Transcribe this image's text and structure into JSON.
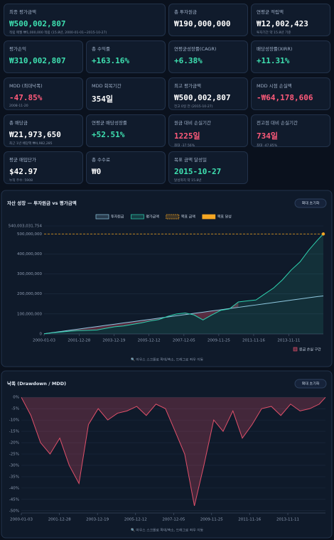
{
  "cards": [
    {
      "label": "최종 평가금액",
      "value": "₩500,002,807",
      "sub": "적립 매월 ₩1,000,000 적립 (15.8년, 2000-01-01~2015-10-27)",
      "color": "#3ee0b0"
    },
    {
      "label": "총 투자원금",
      "value": "₩190,000,000",
      "color": "#ffffff"
    },
    {
      "label": "연평균 적립액",
      "value": "₩12,002,423",
      "sub": "투자기간 약 15.8년 기준",
      "color": "#ffffff"
    },
    {
      "label": "평가손익",
      "value": "₩310,002,807",
      "color": "#3ee0b0"
    },
    {
      "label": "총 수익률",
      "value": "+163.16%",
      "color": "#3ee0b0"
    },
    {
      "label": "연평균성장률(CAGR)",
      "value": "+6.38%",
      "color": "#3ee0b0"
    },
    {
      "label": "배당성장률(XIRR)",
      "value": "+11.31%",
      "color": "#3ee0b0"
    },
    {
      "label": "MDD (최대낙폭)",
      "value": "-47.85%",
      "sub": "2008-11-20",
      "color": "#ff5a7a"
    },
    {
      "label": "MDD 회복기간",
      "value": "354일",
      "color": "#ffffff"
    },
    {
      "label": "최고 평가금액",
      "value": "₩500,002,807",
      "sub": "전고 0일 전 (2015-10-27)",
      "color": "#ffffff"
    },
    {
      "label": "MDD 시점 손실액",
      "value": "-₩64,178,606",
      "color": "#ff5a7a"
    },
    {
      "label": "총 배당금",
      "value": "₩21,973,650",
      "sub": "최근 1년 배당액 ₩4,982,285",
      "color": "#ffffff"
    },
    {
      "label": "연평균 배당성장률",
      "value": "+52.51%",
      "color": "#3ee0b0"
    },
    {
      "label": "원금 대비 손실기간",
      "value": "1225일",
      "sub": "최대 -37.56%",
      "color": "#ff5a7a"
    },
    {
      "label": "전고점 대비 손실기간",
      "value": "734일",
      "sub": "최대 -47.85%",
      "color": "#ff5a7a"
    },
    {
      "label": "평균 매입단가",
      "value": "$42.97",
      "sub": "누적 주수: 5908",
      "color": "#ffffff"
    },
    {
      "label": "총 수수료",
      "value": "₩0",
      "color": "#ffffff"
    },
    {
      "label": "목표 금액 달성일",
      "value": "2015-10-27",
      "sub": "달성까지 약 15.8년",
      "color": "#3ee0b0"
    }
  ],
  "chart_data": [
    {
      "type": "area-line",
      "title": "자산 성장 — 투자원금 vs 평가금액",
      "button": "확대 초기화",
      "x": [
        "2000-01-03",
        "2000-07-03",
        "2001-01-02",
        "2001-07-02",
        "2002-01-02",
        "2002-07-01",
        "2003-01-02",
        "2003-07-01",
        "2004-01-02",
        "2004-07-01",
        "2005-01-03",
        "2005-07-01",
        "2006-01-03",
        "2006-07-03",
        "2007-01-03",
        "2007-07-02",
        "2008-01-02",
        "2008-07-01",
        "2009-01-02",
        "2009-07-01",
        "2010-01-04",
        "2010-07-01",
        "2011-01-03",
        "2011-07-01",
        "2012-01-03",
        "2012-07-02",
        "2013-01-02",
        "2013-07-01",
        "2014-01-02",
        "2014-07-01",
        "2015-01-02",
        "2015-07-01",
        "2015-10-27"
      ],
      "series": [
        {
          "name": "투자원금",
          "color": "#8fc8e0",
          "values": [
            1000000,
            7000000,
            13000000,
            19000000,
            25000000,
            31000000,
            37000000,
            43000000,
            49000000,
            55000000,
            61000000,
            67000000,
            73000000,
            79000000,
            85000000,
            91000000,
            97000000,
            103000000,
            109000000,
            115000000,
            121000000,
            127000000,
            133000000,
            139000000,
            145000000,
            151000000,
            157000000,
            163000000,
            169000000,
            175000000,
            181000000,
            187000000,
            190000000
          ]
        },
        {
          "name": "평가금액",
          "color": "#2ed3b0",
          "values": [
            1000000,
            6000000,
            10000000,
            14000000,
            17000000,
            18000000,
            20000000,
            28000000,
            36000000,
            40000000,
            48000000,
            55000000,
            65000000,
            72000000,
            88000000,
            100000000,
            105000000,
            95000000,
            70000000,
            95000000,
            118000000,
            125000000,
            160000000,
            165000000,
            170000000,
            200000000,
            230000000,
            270000000,
            320000000,
            360000000,
            420000000,
            470000000,
            500002807
          ]
        }
      ],
      "goal": {
        "name": "목표 금액",
        "value": 500000000,
        "color": "#f5a623"
      },
      "goal_reached": {
        "name": "목표 달성",
        "x": "2015-10-27",
        "value": 500002807,
        "color": "#f5a623"
      },
      "loss_zone": {
        "name": "원금 손실 구간",
        "color": "#e0506a"
      },
      "xlim": [
        "2000-01-03",
        "2015-10-27"
      ],
      "xticks": [
        "2000-01-03",
        "2001-12-28",
        "2003-12-19",
        "2005-12-12",
        "2007-12-05",
        "2009-11-25",
        "2011-11-16",
        "2013-11-11"
      ],
      "ylim": [
        0,
        540003031.754
      ],
      "yticks": [
        0,
        {
          "value": 100000000,
          "label": "100,000,000"
        },
        {
          "value": 200000000,
          "label": "200,000,000"
        },
        {
          "value": 300000000,
          "label": "300,000,000"
        },
        {
          "value": 400000000,
          "label": "400,000,000"
        },
        {
          "value": 500000000,
          "label": "500,000,000"
        },
        {
          "value": 540003031.754,
          "label": "540,003,031.754"
        }
      ],
      "grid": true,
      "hint": "🔍 마우스 스크롤로 확대/축소, 드래그로 좌우 이동"
    },
    {
      "type": "drawdown",
      "title": "낙폭 (Drawdown / MDD)",
      "button": "확대 초기화",
      "x": [
        "2000-01-03",
        "2000-07-03",
        "2001-01-02",
        "2001-07-02",
        "2002-01-02",
        "2002-07-01",
        "2003-01-02",
        "2003-07-01",
        "2004-01-02",
        "2004-07-01",
        "2005-01-03",
        "2005-07-01",
        "2006-01-03",
        "2006-07-03",
        "2007-01-03",
        "2007-07-02",
        "2008-01-02",
        "2008-07-01",
        "2009-01-02",
        "2009-07-01",
        "2010-01-04",
        "2010-07-01",
        "2011-01-03",
        "2011-07-01",
        "2012-01-03",
        "2012-07-02",
        "2013-01-02",
        "2013-07-01",
        "2014-01-02",
        "2014-07-01",
        "2015-01-02",
        "2015-07-01",
        "2015-10-27"
      ],
      "series": [
        {
          "name": "낙폭",
          "color": "#e0506a",
          "values": [
            0,
            -8,
            -20,
            -25,
            -18,
            -30,
            -38,
            -12,
            -5,
            -10,
            -7,
            -6,
            -4,
            -8,
            -3,
            -5,
            -15,
            -25,
            -47.85,
            -30,
            -10,
            -15,
            -6,
            -18,
            -12,
            -5,
            -4,
            -8,
            -3,
            -6,
            -5,
            -3,
            0
          ]
        }
      ],
      "xlim": [
        "2000-01-03",
        "2015-10-27"
      ],
      "xticks": [
        "2000-01-03",
        "2001-12-28",
        "2003-12-19",
        "2005-12-12",
        "2007-12-05",
        "2009-11-25",
        "2011-11-16",
        "2013-11-11"
      ],
      "ylim": [
        -51,
        1
      ],
      "yticks": [
        {
          "value": 0,
          "label": "0%"
        },
        {
          "value": -5,
          "label": "-5%"
        },
        {
          "value": -10,
          "label": "-10%"
        },
        {
          "value": -15,
          "label": "-15%"
        },
        {
          "value": -20,
          "label": "-20%"
        },
        {
          "value": -25,
          "label": "-25%"
        },
        {
          "value": -30,
          "label": "-30%"
        },
        {
          "value": -35,
          "label": "-35%"
        },
        {
          "value": -40,
          "label": "-40%"
        },
        {
          "value": -45,
          "label": "-45%"
        },
        {
          "value": -50,
          "label": "-50%"
        }
      ],
      "grid": true,
      "hint": "🔍 마우스 스크롤로 확대/축소, 드래그로 좌우 이동"
    }
  ]
}
